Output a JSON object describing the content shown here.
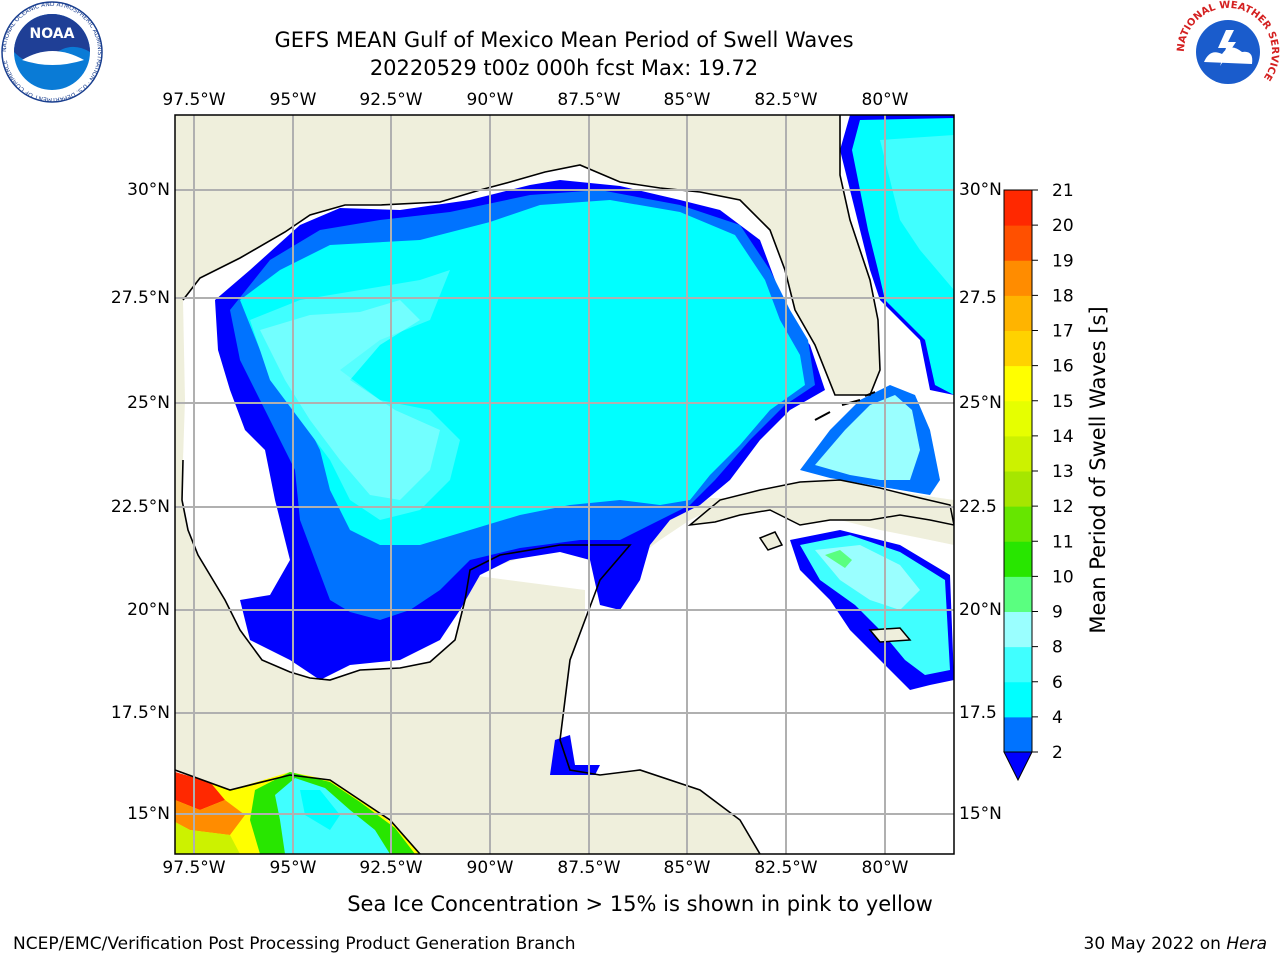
{
  "title": {
    "line1": "GEFS MEAN Gulf of Mexico Mean Period of Swell Waves",
    "line2": "20220529 t00z 000h fcst   Max: 19.72"
  },
  "logos": {
    "left": "NOAA",
    "left_ring_text": "NATIONAL OCEANIC AND ATMOSPHERIC ADMINISTRATION · U.S. DEPARTMENT OF COMMERCE",
    "right_ring_text": "NATIONAL WEATHER SERVICE"
  },
  "map": {
    "lon_labels": [
      "97.5°W",
      "95°W",
      "92.5°W",
      "90°W",
      "87.5°W",
      "85°W",
      "82.5°W",
      "80°W"
    ],
    "lat_labels_left": [
      "30°N",
      "27.5°N",
      "25°N",
      "22.5°N",
      "20°N",
      "17.5°N",
      "15°N"
    ],
    "lat_labels_right": [
      "30°N",
      "27.5",
      "25°N",
      "22.5",
      "20°N",
      "17.5",
      "15°N"
    ],
    "colors": {
      "land": "#efefdc",
      "ocean_nodata": "#ffffff",
      "grid": "#b0b0b0",
      "coast": "#000000"
    }
  },
  "colorbar": {
    "label": "Mean Period of Swell Waves [s]",
    "ticks": [
      "2",
      "4",
      "6",
      "8",
      "9",
      "10",
      "11",
      "12",
      "13",
      "14",
      "15",
      "16",
      "17",
      "18",
      "19",
      "20",
      "21"
    ],
    "colors": [
      "#0000ff",
      "#0073ff",
      "#00ffff",
      "#40ffff",
      "#9affff",
      "#5aff80",
      "#28e600",
      "#66e600",
      "#a6e600",
      "#ccf200",
      "#e6ff00",
      "#ffff00",
      "#ffd200",
      "#ffb400",
      "#ff8c00",
      "#ff5000",
      "#ff2800",
      "#ff0000"
    ]
  },
  "footer": {
    "note": "Sea Ice Concentration > 15% is shown in pink to yellow",
    "left": "NCEP/EMC/Verification Post Processing Product Generation Branch",
    "right_date": "30 May 2022 on ",
    "right_host": "Hera"
  }
}
